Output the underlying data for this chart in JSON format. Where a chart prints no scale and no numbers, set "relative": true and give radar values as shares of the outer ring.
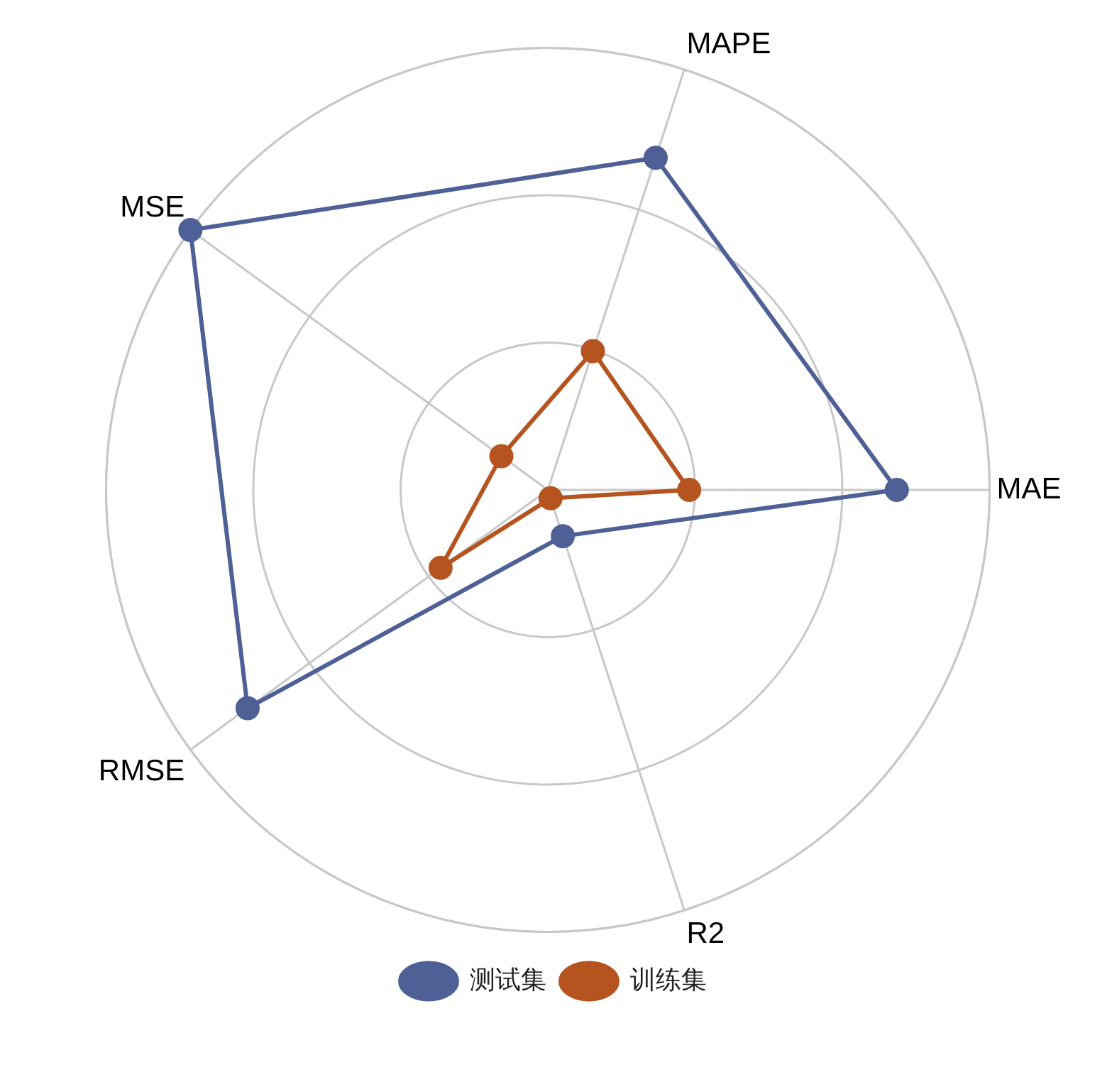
{
  "chart_data": {
    "type": "radar",
    "relative": true,
    "categories": [
      "MAPE",
      "MAE",
      "R2",
      "RMSE",
      "MSE"
    ],
    "series": [
      {
        "name": "测试集",
        "color": "#4e6096",
        "values": [
          0.79,
          0.79,
          0.11,
          0.84,
          1
        ]
      },
      {
        "name": "训练集",
        "color": "#b5541f",
        "values": [
          0.33,
          0.32,
          0.02,
          0.3,
          0.13
        ]
      }
    ],
    "grid": true,
    "legend": "bottom",
    "marker": "circle",
    "line_style": "solid"
  }
}
